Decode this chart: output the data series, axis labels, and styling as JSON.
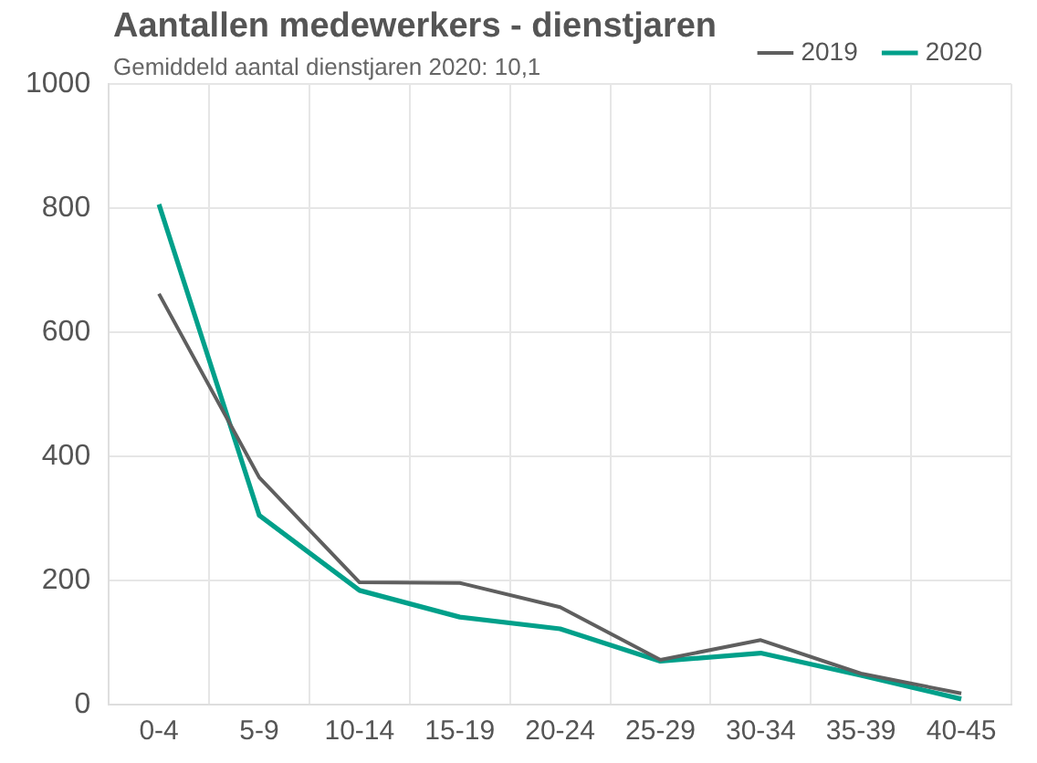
{
  "chart_data": {
    "type": "line",
    "title": "Aantallen medewerkers - dienstjaren",
    "subtitle": "Gemiddeld aantal dienstjaren 2020: 10,1",
    "categories": [
      "0-4",
      "5-9",
      "10-14",
      "15-19",
      "20-24",
      "25-29",
      "30-34",
      "35-39",
      "40-45"
    ],
    "series": [
      {
        "name": "2019",
        "color": "#5f5f5f",
        "values": [
          662,
          366,
          197,
          196,
          157,
          72,
          104,
          50,
          18
        ]
      },
      {
        "name": "2020",
        "color": "#00a08a",
        "values": [
          806,
          305,
          184,
          141,
          122,
          70,
          83,
          47,
          9
        ]
      }
    ],
    "ylim": [
      0,
      1000
    ],
    "yticks": [
      0,
      200,
      400,
      600,
      800,
      1000
    ],
    "grid": true,
    "legend": "top right",
    "marker": "none",
    "line_style": "solid"
  }
}
